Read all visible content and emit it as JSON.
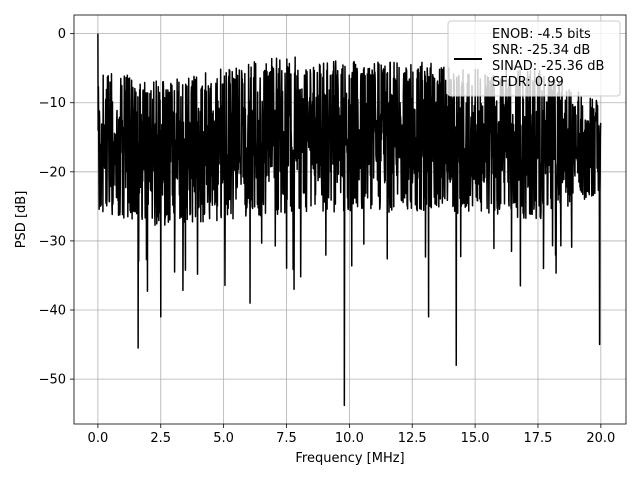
{
  "chart_data": {
    "type": "line",
    "title": "",
    "xlabel": "Frequency [MHz]",
    "ylabel": "PSD [dB]",
    "xlim": [
      -0.95,
      21.0
    ],
    "ylim": [
      -56.5,
      2.7
    ],
    "xticks": [
      0.0,
      2.5,
      5.0,
      7.5,
      10.0,
      12.5,
      15.0,
      17.5,
      20.0
    ],
    "xtick_labels": [
      "0.0",
      "2.5",
      "5.0",
      "7.5",
      "10.0",
      "12.5",
      "15.0",
      "17.5",
      "20.0"
    ],
    "yticks": [
      0,
      -10,
      -20,
      -30,
      -40,
      -50
    ],
    "ytick_labels": [
      "0",
      "−10",
      "−20",
      "−30",
      "−40",
      "−50"
    ],
    "grid": true,
    "legend_position": "top-right",
    "legend_lines": [
      "ENOB: -4.5 bits",
      "SNR: -25.34 dB",
      "SINAD: -25.36 dB",
      "SFDR: 0.99"
    ],
    "series_color": "#000000",
    "series": [
      {
        "name": "ENOB: -4.5 bits",
        "x_start": 0.0,
        "x_end": 20.0,
        "points": 2000,
        "peak": {
          "x": 0.0,
          "y": 0.0
        },
        "notable_minima": [
          {
            "x": 1.6,
            "y": -45.5
          },
          {
            "x": 2.5,
            "y": -41.0
          },
          {
            "x": 3.05,
            "y": -34.5
          },
          {
            "x": 6.05,
            "y": -39.0
          },
          {
            "x": 7.8,
            "y": -37.0
          },
          {
            "x": 9.8,
            "y": -53.8
          },
          {
            "x": 13.15,
            "y": -41.0
          },
          {
            "x": 14.25,
            "y": -48.0
          },
          {
            "x": 16.8,
            "y": -36.5
          },
          {
            "x": 19.95,
            "y": -45.0
          }
        ],
        "envelope": [
          {
            "x": 0.0,
            "upper": -5.0,
            "lower": -26.0
          },
          {
            "x": 2.5,
            "upper": -7.0,
            "lower": -28.0
          },
          {
            "x": 5.0,
            "upper": -5.0,
            "lower": -27.0
          },
          {
            "x": 7.5,
            "upper": -3.0,
            "lower": -26.0
          },
          {
            "x": 10.0,
            "upper": -4.0,
            "lower": -26.0
          },
          {
            "x": 12.5,
            "upper": -4.0,
            "lower": -26.0
          },
          {
            "x": 15.0,
            "upper": -5.0,
            "lower": -26.0
          },
          {
            "x": 17.5,
            "upper": -5.0,
            "lower": -27.0
          },
          {
            "x": 20.0,
            "upper": -10.0,
            "lower": -23.0
          }
        ]
      }
    ]
  }
}
